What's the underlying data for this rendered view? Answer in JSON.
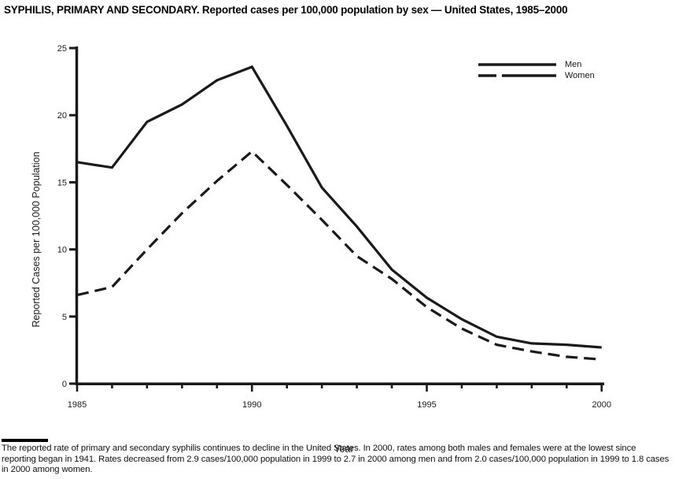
{
  "title": "SYPHILIS, PRIMARY AND SECONDARY. Reported cases per 100,000 population by sex — United States, 1985–2000",
  "chart_data": {
    "type": "line",
    "x": [
      1985,
      1986,
      1987,
      1988,
      1989,
      1990,
      1991,
      1992,
      1993,
      1994,
      1995,
      1996,
      1997,
      1998,
      1999,
      2000
    ],
    "series": [
      {
        "name": "Men",
        "style": "solid",
        "values": [
          16.5,
          16.1,
          19.5,
          20.8,
          22.6,
          23.6,
          19.2,
          14.6,
          11.7,
          8.5,
          6.4,
          4.8,
          3.5,
          3.0,
          2.9,
          2.7
        ]
      },
      {
        "name": "Women",
        "style": "dashed",
        "values": [
          6.6,
          7.2,
          10.0,
          12.7,
          15.1,
          17.3,
          14.8,
          12.2,
          9.5,
          7.8,
          5.7,
          4.1,
          2.9,
          2.4,
          2.0,
          1.8
        ]
      }
    ],
    "xlabel": "Year",
    "ylabel": "Reported Cases per 100,000 Population",
    "ylim": [
      0,
      25
    ],
    "y_ticks": [
      0,
      5,
      10,
      15,
      20,
      25
    ],
    "x_major_ticks": [
      1985,
      1990,
      1995,
      2000
    ],
    "grid": false,
    "legend_position": "top-right",
    "line_color": "#1a1a1a"
  },
  "footnote": {
    "text": "The reported rate of primary and secondary syphilis continues to decline in the United States. In 2000, rates among both males and females were at the lowest since reporting began in 1941. Rates decreased from 2.9 cases/100,000 population in 1999 to 2.7 in 2000 among men and from 2.0 cases/100,000 population in 1999 to 1.8 cases in 2000 among women."
  }
}
